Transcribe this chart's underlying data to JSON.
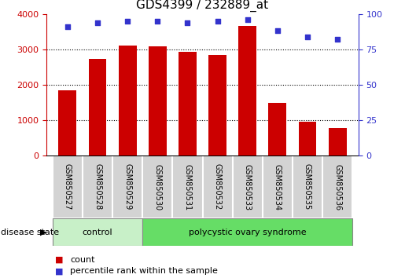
{
  "title": "GDS4399 / 232889_at",
  "samples": [
    "GSM850527",
    "GSM850528",
    "GSM850529",
    "GSM850530",
    "GSM850531",
    "GSM850532",
    "GSM850533",
    "GSM850534",
    "GSM850535",
    "GSM850536"
  ],
  "counts": [
    1850,
    2720,
    3100,
    3080,
    2920,
    2840,
    3650,
    1500,
    960,
    790
  ],
  "percentiles": [
    91,
    94,
    95,
    95,
    94,
    95,
    96,
    88,
    84,
    82
  ],
  "bar_color": "#cc0000",
  "dot_color": "#3333cc",
  "control_count": 3,
  "ylim_left": [
    0,
    4000
  ],
  "ylim_right": [
    0,
    100
  ],
  "yticks_left": [
    0,
    1000,
    2000,
    3000,
    4000
  ],
  "yticks_right": [
    0,
    25,
    50,
    75,
    100
  ],
  "legend_count_label": "count",
  "legend_pct_label": "percentile rank within the sample",
  "legend_count_color": "#cc0000",
  "legend_pct_color": "#3333cc",
  "disease_state_label": "disease state",
  "group_label_control": "control",
  "group_label_pcos": "polycystic ovary syndrome",
  "control_color": "#c8f0c8",
  "pcos_color": "#66dd66",
  "tick_color_left": "#cc0000",
  "tick_color_right": "#3333cc",
  "sample_box_color": "#d3d3d3",
  "title_fontsize": 11,
  "axis_fontsize": 8,
  "label_fontsize": 7
}
